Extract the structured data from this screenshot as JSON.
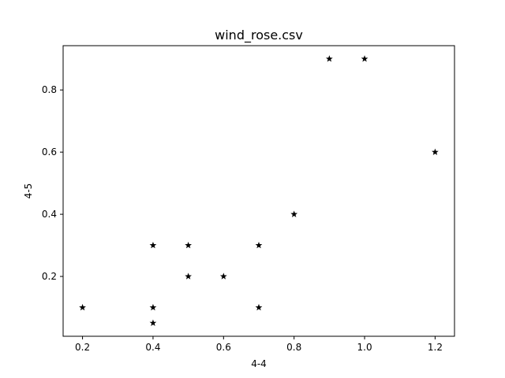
{
  "chart_data": {
    "type": "scatter",
    "title": "wind_rose.csv",
    "xlabel": "4-4",
    "ylabel": "4-5",
    "xlim": [
      0.145,
      1.255
    ],
    "ylim": [
      0.0075,
      0.9425
    ],
    "xticks": [
      0.2,
      0.4,
      0.6,
      0.8,
      1.0,
      1.2
    ],
    "xtick_labels": [
      "0.2",
      "0.4",
      "0.6",
      "0.8",
      "1.0",
      "1.2"
    ],
    "yticks": [
      0.2,
      0.4,
      0.6,
      0.8
    ],
    "ytick_labels": [
      "0.2",
      "0.4",
      "0.6",
      "0.8"
    ],
    "marker": "star",
    "marker_color": "#000000",
    "grid": false,
    "points": [
      {
        "x": 0.2,
        "y": 0.1
      },
      {
        "x": 0.4,
        "y": 0.3
      },
      {
        "x": 0.4,
        "y": 0.1
      },
      {
        "x": 0.4,
        "y": 0.05
      },
      {
        "x": 0.5,
        "y": 0.3
      },
      {
        "x": 0.5,
        "y": 0.2
      },
      {
        "x": 0.6,
        "y": 0.2
      },
      {
        "x": 0.7,
        "y": 0.3
      },
      {
        "x": 0.7,
        "y": 0.1
      },
      {
        "x": 0.8,
        "y": 0.4
      },
      {
        "x": 0.9,
        "y": 0.9
      },
      {
        "x": 1.0,
        "y": 0.9
      },
      {
        "x": 1.2,
        "y": 0.6
      }
    ]
  }
}
